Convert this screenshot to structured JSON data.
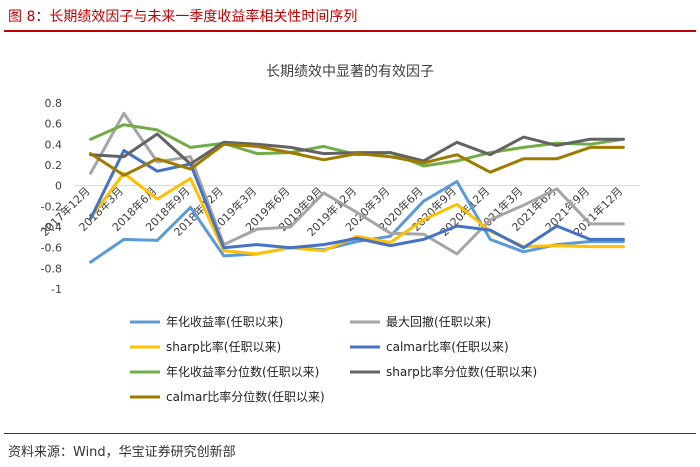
{
  "figure": {
    "title": "图 8：长期绩效因子与未来一季度收益率相关性时间序列",
    "source": "资料来源：Wind，华宝证券研究创新部"
  },
  "chart_data": {
    "type": "line",
    "title": "长期绩效中显著的有效因子",
    "xlabel": "",
    "ylabel": "",
    "ylim": [
      -1,
      0.8
    ],
    "yticks": [
      0.8,
      0.6,
      0.4,
      0.2,
      0,
      -0.2,
      -0.4,
      -0.6,
      -0.8,
      -1
    ],
    "ytick_labels": [
      "0.8",
      "0.6",
      "0.4",
      "0.2",
      "0",
      "-0.2",
      "-0.4",
      "-0.6",
      "-0.8",
      "-1"
    ],
    "grid": false,
    "legend_position": "bottom",
    "x": [
      "2017Q4",
      "2018Q1",
      "2018Q2",
      "2018Q3",
      "2018Q4",
      "2019Q1",
      "2019Q2",
      "2019Q3",
      "2019Q4",
      "2020Q1",
      "2020Q2",
      "2020Q3",
      "2020Q4",
      "2021Q1",
      "2021Q2",
      "2021Q3",
      "2021Q4"
    ],
    "tick_labels": [
      "2017年12月",
      "2018年3月",
      "2018年6月",
      "2018年9月",
      "2018年12月",
      "2019年3月",
      "2019年6月",
      "2019年9月",
      "2019年12月",
      "2020年3月",
      "2020年6月",
      "2020年9月",
      "2020年12月",
      "2021年3月",
      "2021年6月",
      "2021年9月",
      "2021年12月"
    ],
    "series": [
      {
        "name": "年化收益率(任职以来)",
        "color": "#5b9bd5",
        "values": [
          -0.74,
          -0.52,
          -0.53,
          -0.21,
          -0.68,
          -0.66,
          -0.6,
          -0.62,
          -0.54,
          -0.49,
          -0.15,
          0.04,
          -0.52,
          -0.64,
          -0.57,
          -0.54,
          -0.54
        ]
      },
      {
        "name": "最大回撤(任职以来)",
        "color": "#a5a5a5",
        "values": [
          0.12,
          0.7,
          0.23,
          0.28,
          -0.57,
          -0.42,
          -0.4,
          -0.07,
          -0.26,
          -0.46,
          -0.47,
          -0.66,
          -0.33,
          -0.19,
          -0.03,
          -0.37,
          -0.37
        ]
      },
      {
        "name": "sharp比率(任职以来)",
        "color": "#ffc000",
        "values": [
          -0.31,
          0.12,
          -0.13,
          0.07,
          -0.63,
          -0.66,
          -0.6,
          -0.63,
          -0.49,
          -0.55,
          -0.33,
          -0.18,
          -0.44,
          -0.59,
          -0.58,
          -0.59,
          -0.59
        ]
      },
      {
        "name": "calmar比率(任职以来)",
        "color": "#4472c4",
        "values": [
          -0.32,
          0.34,
          0.14,
          0.21,
          -0.6,
          -0.57,
          -0.6,
          -0.57,
          -0.51,
          -0.58,
          -0.52,
          -0.39,
          -0.43,
          -0.6,
          -0.39,
          -0.52,
          -0.52
        ]
      },
      {
        "name": "年化收益率分位数(任职以来)",
        "color": "#70ad47",
        "values": [
          0.45,
          0.59,
          0.54,
          0.37,
          0.41,
          0.31,
          0.32,
          0.38,
          0.3,
          0.32,
          0.19,
          0.24,
          0.32,
          0.37,
          0.41,
          0.4,
          0.45
        ]
      },
      {
        "name": "sharp比率分位数(任职以来)",
        "color": "#636363",
        "values": [
          0.3,
          0.28,
          0.5,
          0.21,
          0.42,
          0.4,
          0.37,
          0.31,
          0.32,
          0.32,
          0.24,
          0.42,
          0.3,
          0.47,
          0.39,
          0.45,
          0.45
        ]
      },
      {
        "name": "calmar比率分位数(任职以来)",
        "color": "#9e7b00",
        "values": [
          0.31,
          0.1,
          0.26,
          0.16,
          0.4,
          0.38,
          0.32,
          0.25,
          0.31,
          0.28,
          0.22,
          0.3,
          0.13,
          0.26,
          0.26,
          0.37,
          0.37
        ]
      }
    ]
  }
}
